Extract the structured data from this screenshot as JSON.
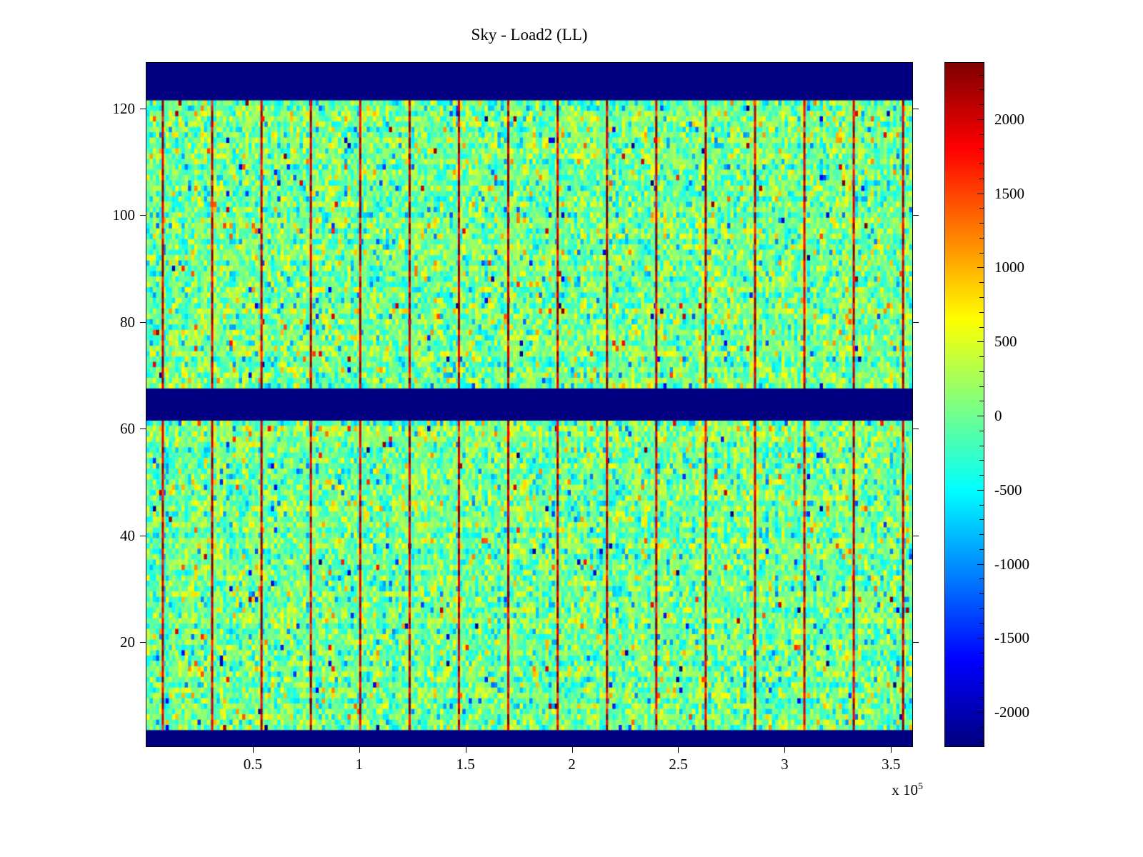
{
  "chart_data": {
    "type": "heatmap",
    "title": "Sky - Load2 (LL)",
    "x_axis": {
      "range": [
        0,
        360000
      ],
      "ticks": [
        {
          "value": 50000,
          "label": "0.5"
        },
        {
          "value": 100000,
          "label": "1"
        },
        {
          "value": 150000,
          "label": "1.5"
        },
        {
          "value": 200000,
          "label": "2"
        },
        {
          "value": 250000,
          "label": "2.5"
        },
        {
          "value": 300000,
          "label": "3"
        },
        {
          "value": 350000,
          "label": "3.5"
        }
      ],
      "exponent_base": "x 10",
      "exponent_power": "5"
    },
    "y_axis": {
      "range": [
        0.5,
        128.5
      ],
      "ticks": [
        {
          "value": 20,
          "label": "20"
        },
        {
          "value": 40,
          "label": "40"
        },
        {
          "value": 60,
          "label": "60"
        },
        {
          "value": 80,
          "label": "80"
        },
        {
          "value": 100,
          "label": "100"
        },
        {
          "value": 120,
          "label": "120"
        }
      ]
    },
    "colorbar": {
      "colormap": "jet",
      "range": [
        -2230,
        2380
      ],
      "major_ticks": [
        {
          "value": 2000,
          "label": "2000"
        },
        {
          "value": 1500,
          "label": "1500"
        },
        {
          "value": 1000,
          "label": "1000"
        },
        {
          "value": 500,
          "label": "500"
        },
        {
          "value": 0,
          "label": "0"
        },
        {
          "value": -500,
          "label": "-500"
        },
        {
          "value": -1000,
          "label": "-1000"
        },
        {
          "value": -1500,
          "label": "-1500"
        },
        {
          "value": -2000,
          "label": "-2000"
        }
      ],
      "minor_tick_step": 100
    },
    "heatmap": {
      "rows": 128,
      "cols": 240,
      "noise_mean": 0,
      "noise_std": 380,
      "row_offset_std": 70,
      "col_offset_std": 45,
      "seed": 7,
      "blank_value": -2230,
      "blank_bands_rows": [
        [
          122,
          128
        ],
        [
          62,
          67
        ],
        [
          1,
          3
        ]
      ],
      "vertical_lines_x": [
        7700,
        30900,
        54100,
        77300,
        100500,
        123700,
        146900,
        170100,
        193300,
        216500,
        239700,
        262900,
        286100,
        309300,
        332500,
        355700
      ],
      "line_value": 2300
    }
  }
}
